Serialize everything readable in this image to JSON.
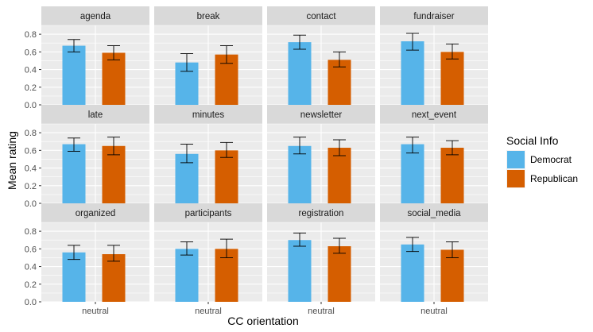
{
  "chart_data": {
    "type": "bar",
    "facet_layout": "3x4 grid",
    "facets": [
      {
        "title": "agenda",
        "category": "neutral",
        "series": [
          {
            "name": "Democrat",
            "value": 0.67,
            "err": [
              0.6,
              0.74
            ]
          },
          {
            "name": "Republican",
            "value": 0.59,
            "err": [
              0.51,
              0.67
            ]
          }
        ]
      },
      {
        "title": "break",
        "category": "neutral",
        "series": [
          {
            "name": "Democrat",
            "value": 0.48,
            "err": [
              0.38,
              0.58
            ]
          },
          {
            "name": "Republican",
            "value": 0.57,
            "err": [
              0.47,
              0.67
            ]
          }
        ]
      },
      {
        "title": "contact",
        "category": "neutral",
        "series": [
          {
            "name": "Democrat",
            "value": 0.71,
            "err": [
              0.63,
              0.79
            ]
          },
          {
            "name": "Republican",
            "value": 0.51,
            "err": [
              0.43,
              0.6
            ]
          }
        ]
      },
      {
        "title": "fundraiser",
        "category": "neutral",
        "series": [
          {
            "name": "Democrat",
            "value": 0.72,
            "err": [
              0.62,
              0.81
            ]
          },
          {
            "name": "Republican",
            "value": 0.6,
            "err": [
              0.52,
              0.69
            ]
          }
        ]
      },
      {
        "title": "late",
        "category": "neutral",
        "series": [
          {
            "name": "Democrat",
            "value": 0.67,
            "err": [
              0.59,
              0.74
            ]
          },
          {
            "name": "Republican",
            "value": 0.65,
            "err": [
              0.55,
              0.75
            ]
          }
        ]
      },
      {
        "title": "minutes",
        "category": "neutral",
        "series": [
          {
            "name": "Democrat",
            "value": 0.56,
            "err": [
              0.46,
              0.67
            ]
          },
          {
            "name": "Republican",
            "value": 0.6,
            "err": [
              0.52,
              0.69
            ]
          }
        ]
      },
      {
        "title": "newsletter",
        "category": "neutral",
        "series": [
          {
            "name": "Democrat",
            "value": 0.65,
            "err": [
              0.56,
              0.75
            ]
          },
          {
            "name": "Republican",
            "value": 0.63,
            "err": [
              0.54,
              0.72
            ]
          }
        ]
      },
      {
        "title": "next_event",
        "category": "neutral",
        "series": [
          {
            "name": "Democrat",
            "value": 0.67,
            "err": [
              0.57,
              0.75
            ]
          },
          {
            "name": "Republican",
            "value": 0.63,
            "err": [
              0.55,
              0.71
            ]
          }
        ]
      },
      {
        "title": "organized",
        "category": "neutral",
        "series": [
          {
            "name": "Democrat",
            "value": 0.56,
            "err": [
              0.48,
              0.64
            ]
          },
          {
            "name": "Republican",
            "value": 0.54,
            "err": [
              0.46,
              0.64
            ]
          }
        ]
      },
      {
        "title": "participants",
        "category": "neutral",
        "series": [
          {
            "name": "Democrat",
            "value": 0.6,
            "err": [
              0.53,
              0.68
            ]
          },
          {
            "name": "Republican",
            "value": 0.6,
            "err": [
              0.5,
              0.71
            ]
          }
        ]
      },
      {
        "title": "registration",
        "category": "neutral",
        "series": [
          {
            "name": "Democrat",
            "value": 0.7,
            "err": [
              0.63,
              0.78
            ]
          },
          {
            "name": "Republican",
            "value": 0.63,
            "err": [
              0.55,
              0.72
            ]
          }
        ]
      },
      {
        "title": "social_media",
        "category": "neutral",
        "series": [
          {
            "name": "Democrat",
            "value": 0.65,
            "err": [
              0.57,
              0.73
            ]
          },
          {
            "name": "Republican",
            "value": 0.59,
            "err": [
              0.5,
              0.68
            ]
          }
        ]
      }
    ],
    "xlabel": "CC orientation",
    "ylabel": "Mean rating",
    "ylim": [
      0,
      0.9
    ],
    "yticks": [
      "0.0",
      "0.2",
      "0.4",
      "0.6",
      "0.8"
    ],
    "grid": true,
    "legend": {
      "title": "Social Info",
      "position": "right",
      "entries": [
        {
          "name": "Democrat",
          "color": "#56B4E9"
        },
        {
          "name": "Republican",
          "color": "#D55E00"
        }
      ]
    },
    "colors": {
      "panel_bg": "#EBEBEB",
      "strip_bg": "#D9D9D9",
      "grid": "#FFFFFF",
      "error_bar": "#000000"
    }
  }
}
